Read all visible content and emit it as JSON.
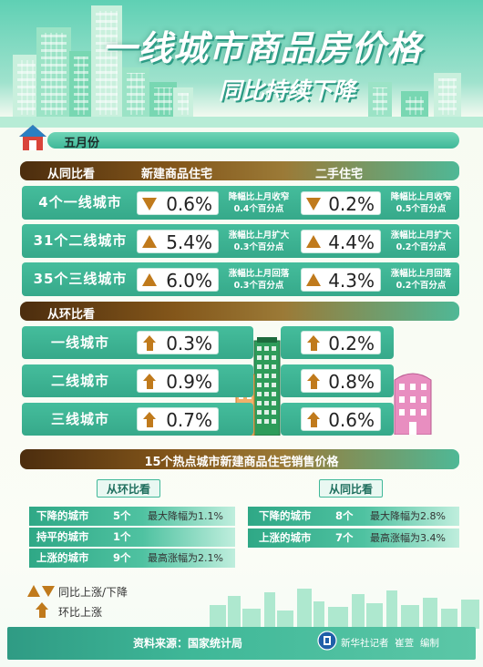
{
  "title": "一线城市商品房价格",
  "subtitle": "同比持续下降",
  "month": "五月份",
  "yoy_section": {
    "label": "从同比看",
    "col_new": "新建商品住宅",
    "col_used": "二手住宅",
    "rows": [
      {
        "city": "4个一线城市",
        "new_value": "0.6%",
        "new_dir": "down",
        "new_note_1": "降幅比上月收窄",
        "new_note_2": "0.4个百分点",
        "used_value": "0.2%",
        "used_dir": "down",
        "used_note_1": "降幅比上月收窄",
        "used_note_2": "0.5个百分点"
      },
      {
        "city": "31个二线城市",
        "new_value": "5.4%",
        "new_dir": "up",
        "new_note_1": "涨幅比上月扩大",
        "new_note_2": "0.3个百分点",
        "used_value": "4.4%",
        "used_dir": "up",
        "used_note_1": "涨幅比上月扩大",
        "used_note_2": "0.2个百分点"
      },
      {
        "city": "35个三线城市",
        "new_value": "6.0%",
        "new_dir": "up",
        "new_note_1": "涨幅比上月回落",
        "new_note_2": "0.3个百分点",
        "used_value": "4.3%",
        "used_dir": "up",
        "used_note_1": "涨幅比上月回落",
        "used_note_2": "0.2个百分点"
      }
    ]
  },
  "mom_section": {
    "label": "从环比看",
    "rows": [
      {
        "city": "一线城市",
        "new_value": "0.3%",
        "used_value": "0.2%"
      },
      {
        "city": "二线城市",
        "new_value": "0.9%",
        "used_value": "0.8%"
      },
      {
        "city": "三线城市",
        "new_value": "0.7%",
        "used_value": "0.6%"
      }
    ]
  },
  "hot_section": {
    "title": "15个热点城市新建商品住宅销售价格",
    "mom_tag": "从环比看",
    "yoy_tag": "从同比看",
    "mom_rows": [
      {
        "label": "下降的城市",
        "count": "5个",
        "note": "最大降幅为1.1%"
      },
      {
        "label": "持平的城市",
        "count": "1个",
        "note": ""
      },
      {
        "label": "上涨的城市",
        "count": "9个",
        "note": "最高涨幅为2.1%"
      }
    ],
    "yoy_rows": [
      {
        "label": "下降的城市",
        "count": "8个",
        "note": "最大降幅为2.8%"
      },
      {
        "label": "上涨的城市",
        "count": "7个",
        "note": "最高涨幅为3.4%"
      }
    ]
  },
  "legend": {
    "yoy": "同比上涨/下降",
    "mom": "环比上涨"
  },
  "footer": {
    "source": "资料来源：国家统计局",
    "credit": "新华社记者  崔萱  编制"
  },
  "colors": {
    "teal": "#3fb898",
    "brown": "#5a3610",
    "arrow": "#c07a1c"
  }
}
